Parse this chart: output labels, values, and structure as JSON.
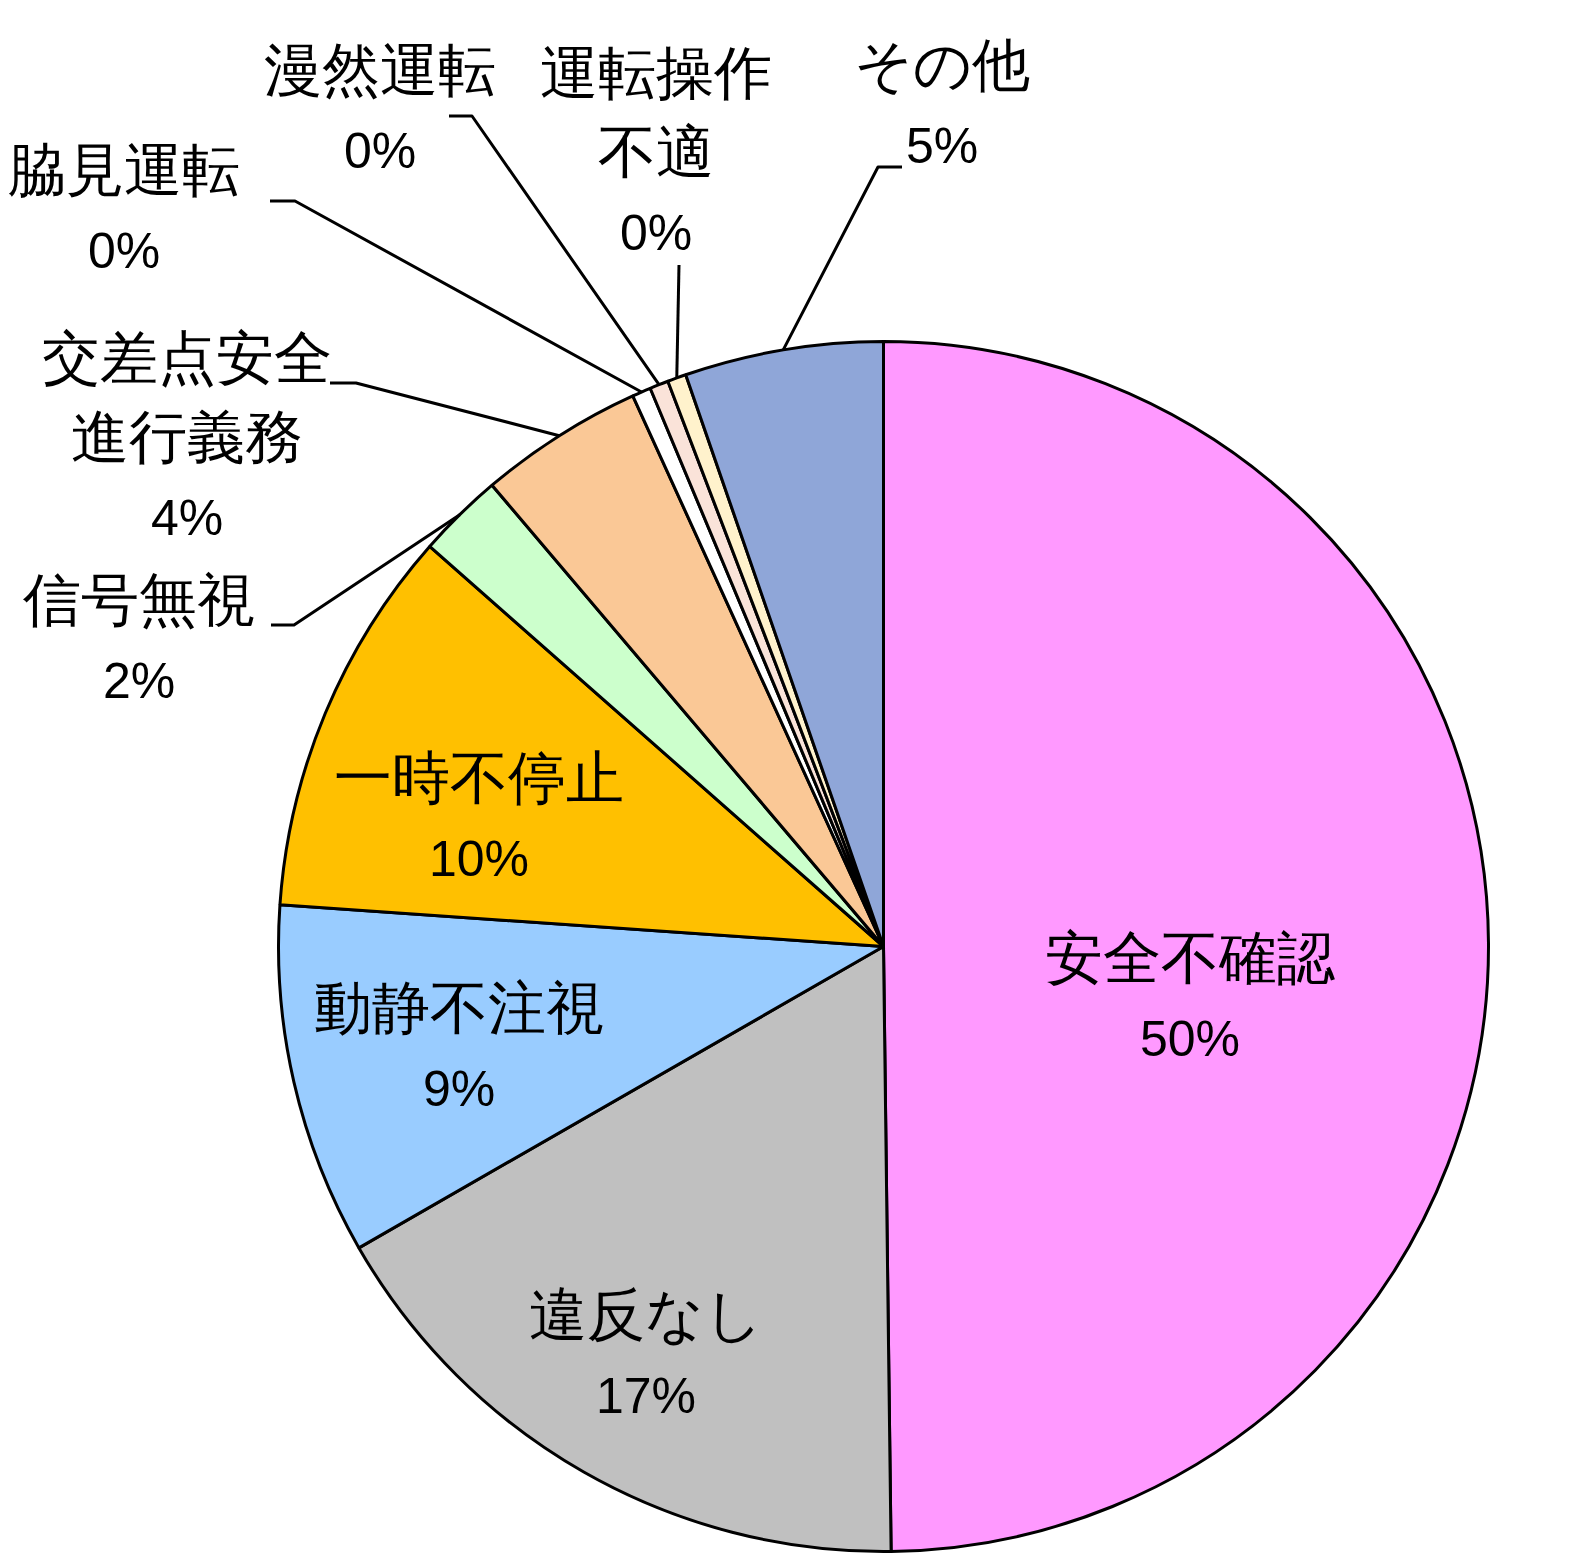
{
  "chart_data": {
    "type": "pie",
    "categories": [
      "安全不確認",
      "違反なし",
      "動静不注視",
      "一時不停止",
      "信号無視",
      "交差点安全進行義務",
      "脇見運転",
      "漫然運転",
      "運転操作不適",
      "その他"
    ],
    "values": [
      49.8,
      16.9,
      9.4,
      10.4,
      2.3,
      4.4,
      0.5,
      0.5,
      0.5,
      5.3
    ],
    "value_labels": [
      "50%",
      "17%",
      "9%",
      "10%",
      "2%",
      "4%",
      "0%",
      "0%",
      "0%",
      "5%"
    ],
    "colors": [
      "#ff99ff",
      "#c0c0c0",
      "#99ccff",
      "#ffc000",
      "#ccffcc",
      "#fac896",
      "#ffffff",
      "#fae3d9",
      "#fff2cc",
      "#8fa6d8"
    ]
  }
}
